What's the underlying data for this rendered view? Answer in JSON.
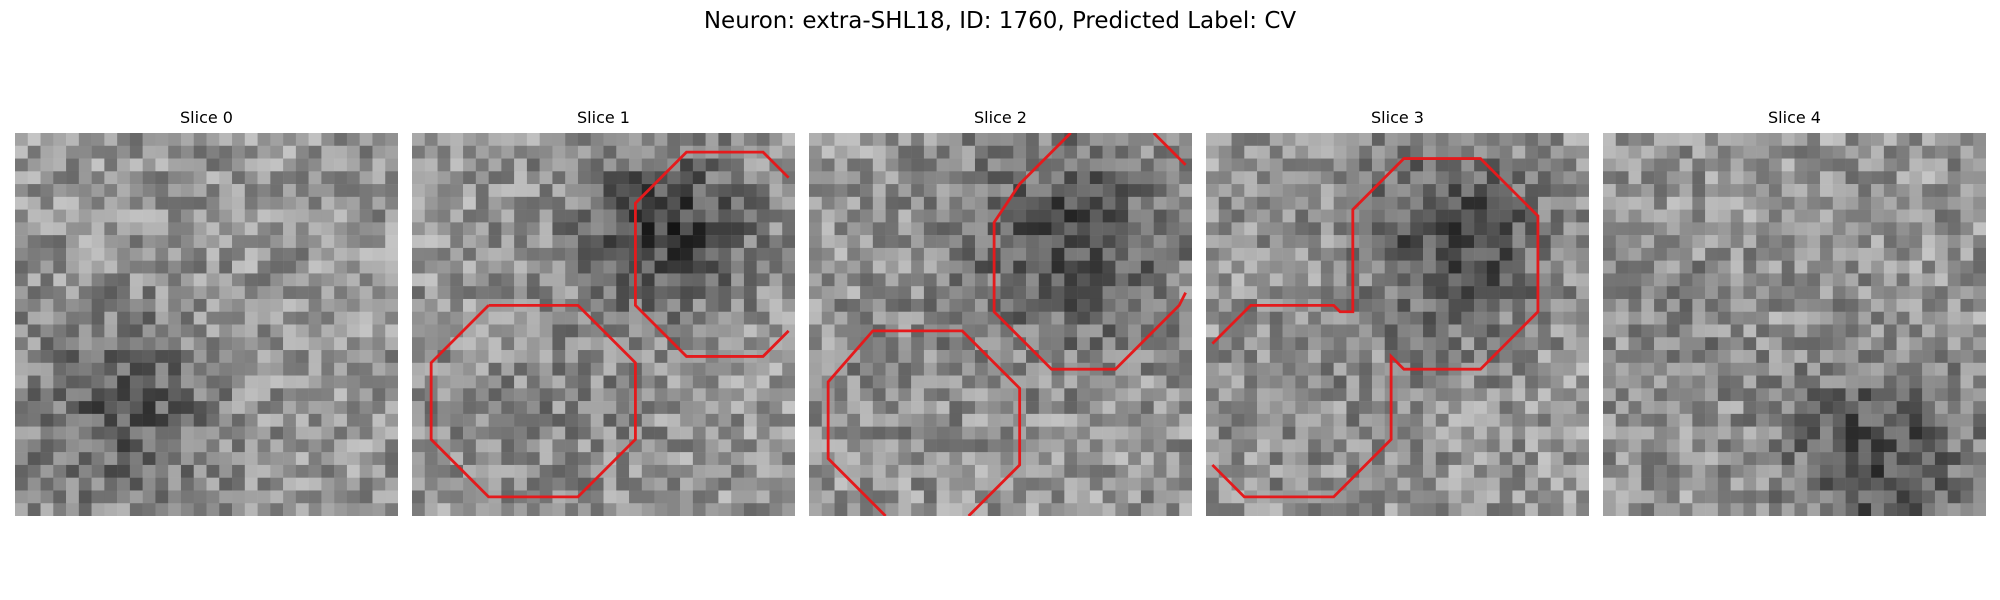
{
  "figure": {
    "title": "Neuron: extra-SHL18, ID: 1760, Predicted Label: CV"
  },
  "panels": [
    {
      "title": "Slice 0"
    },
    {
      "title": "Slice 1"
    },
    {
      "title": "Slice 2"
    },
    {
      "title": "Slice 3"
    },
    {
      "title": "Slice 4"
    }
  ],
  "contour_color": "#e41a1c"
}
